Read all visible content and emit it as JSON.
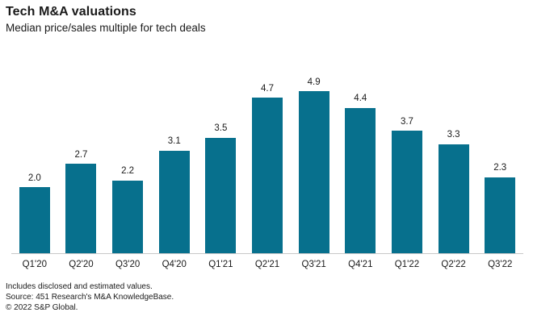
{
  "header": {
    "title": "Tech M&A valuations",
    "subtitle": "Median price/sales multiple for tech deals"
  },
  "chart_data": {
    "type": "bar",
    "title": "Tech M&A valuations",
    "subtitle": "Median price/sales multiple for tech deals",
    "categories": [
      "Q1'20",
      "Q2'20",
      "Q3'20",
      "Q4'20",
      "Q1'21",
      "Q2'21",
      "Q3'21",
      "Q4'21",
      "Q1'22",
      "Q2'22",
      "Q3'22"
    ],
    "values": [
      2.0,
      2.7,
      2.2,
      3.1,
      3.5,
      4.7,
      4.9,
      4.4,
      3.7,
      3.3,
      2.3
    ],
    "xlabel": "",
    "ylabel": "",
    "ylim": [
      0,
      5.2
    ],
    "grid": false,
    "legend": "none",
    "data_labels": true,
    "bar_color": "#07708d",
    "axis_line_color": "#c8c8c8",
    "value_label_format": "one_decimal"
  },
  "footer": {
    "line1": "Includes disclosed and estimated values.",
    "line2": "Source: 451 Research's M&A KnowledgeBase.",
    "line3": "© 2022 S&P Global."
  }
}
